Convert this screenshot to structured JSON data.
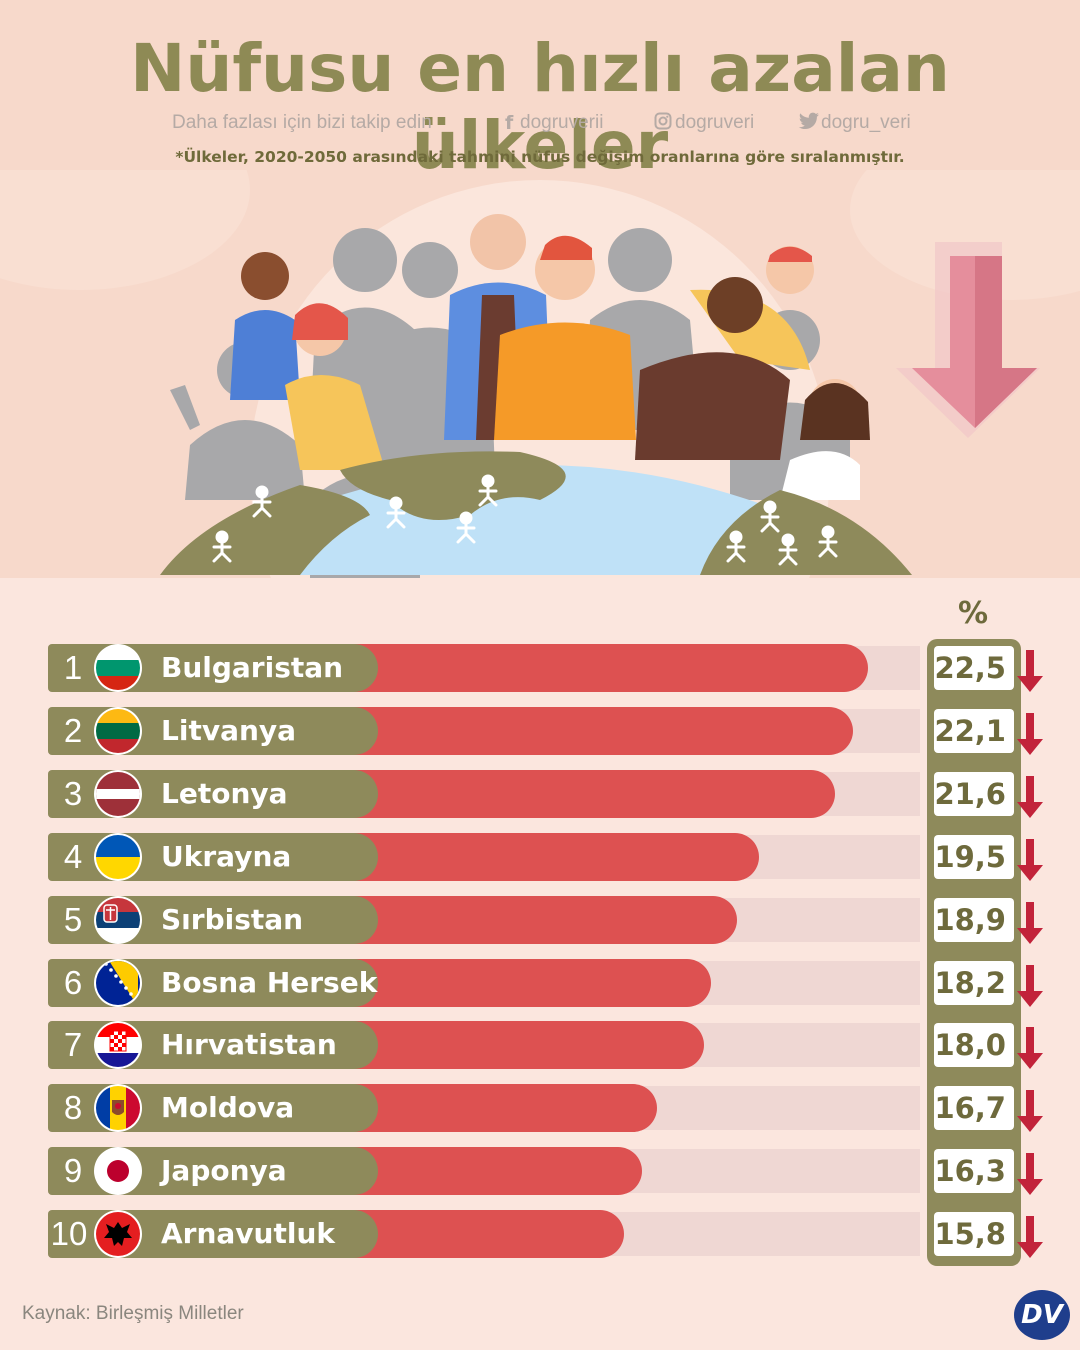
{
  "header": {
    "title": "Nüfusu en hızlı azalan ülkeler",
    "follow_text": "Daha fazlası için bizi takip edin",
    "facebook": "dogruverii",
    "instagram": "dogruveri",
    "twitter": "dogru_veri",
    "note": "*Ülkeler, 2020-2050 arasındaki tahmini nüfus değişim oranlarına göre sıralanmıştır."
  },
  "chart_data": {
    "type": "bar",
    "value_header": "%",
    "categories": [
      "Bulgaristan",
      "Litvanya",
      "Letonya",
      "Ukrayna",
      "Sırbistan",
      "Bosna Hersek",
      "Hırvatistan",
      "Moldova",
      "Japonya",
      "Arnavutluk"
    ],
    "ranks": [
      "1",
      "2",
      "3",
      "4",
      "5",
      "6",
      "7",
      "8",
      "9",
      "10"
    ],
    "values": [
      22.5,
      22.1,
      21.6,
      19.5,
      18.9,
      18.2,
      18.0,
      16.7,
      16.3,
      15.8
    ],
    "value_labels": [
      "22,5",
      "22,1",
      "21,6",
      "19,5",
      "18,9",
      "18,2",
      "18,0",
      "16,7",
      "16,3",
      "15,8"
    ],
    "direction": "decrease"
  },
  "colors": {
    "bar": "#dd5151",
    "label_box": "#8e8a5b",
    "title": "#8e8a55",
    "arrow": "#c2233a"
  },
  "footer": {
    "source": "Kaynak: Birleşmiş Milletler",
    "logo": "DV"
  }
}
